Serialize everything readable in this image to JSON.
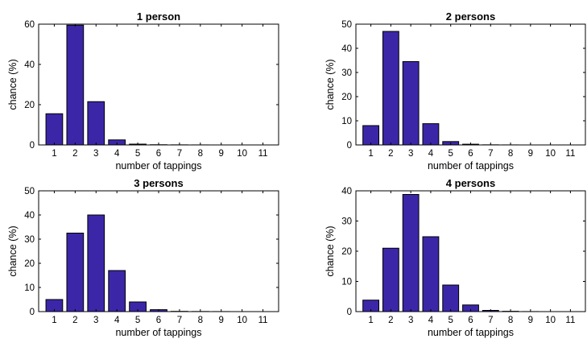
{
  "chart_data": [
    {
      "type": "bar",
      "title": "1 person",
      "xlabel": "number of tappings",
      "ylabel": "chance (%)",
      "categories": [
        "1",
        "2",
        "3",
        "4",
        "5",
        "6",
        "7",
        "8",
        "9",
        "10",
        "11"
      ],
      "values": [
        15.5,
        59.5,
        21.5,
        2.5,
        0.4,
        0.1,
        0.05,
        0.02,
        0,
        0,
        0
      ],
      "ylim": [
        0,
        60
      ],
      "yticks": [
        0,
        20,
        40,
        60
      ]
    },
    {
      "type": "bar",
      "title": "2 persons",
      "xlabel": "number of tappings",
      "ylabel": "chance (%)",
      "categories": [
        "1",
        "2",
        "3",
        "4",
        "5",
        "6",
        "7",
        "8",
        "9",
        "10",
        "11"
      ],
      "values": [
        8,
        47,
        34.5,
        8.8,
        1.4,
        0.3,
        0.05,
        0.02,
        0,
        0,
        0
      ],
      "ylim": [
        0,
        50
      ],
      "yticks": [
        0,
        10,
        20,
        30,
        40,
        50
      ]
    },
    {
      "type": "bar",
      "title": "3 persons",
      "xlabel": "number of tappings",
      "ylabel": "chance (%)",
      "categories": [
        "1",
        "2",
        "3",
        "4",
        "5",
        "6",
        "7",
        "8",
        "9",
        "10",
        "11"
      ],
      "values": [
        5,
        32.5,
        40,
        17,
        4,
        0.8,
        0.1,
        0.05,
        0.02,
        0,
        0
      ],
      "ylim": [
        0,
        50
      ],
      "yticks": [
        0,
        10,
        20,
        30,
        40,
        50
      ]
    },
    {
      "type": "bar",
      "title": "4 persons",
      "xlabel": "number of tappings",
      "ylabel": "chance (%)",
      "categories": [
        "1",
        "2",
        "3",
        "4",
        "5",
        "6",
        "7",
        "8",
        "9",
        "10",
        "11"
      ],
      "values": [
        3.8,
        21,
        38.8,
        24.8,
        8.8,
        2.2,
        0.4,
        0.1,
        0.02,
        0,
        0
      ],
      "ylim": [
        0,
        40
      ],
      "yticks": [
        0,
        10,
        20,
        30,
        40
      ]
    }
  ],
  "colors": {
    "bar_fill": "#3c26a8",
    "bar_edge": "#000000"
  }
}
